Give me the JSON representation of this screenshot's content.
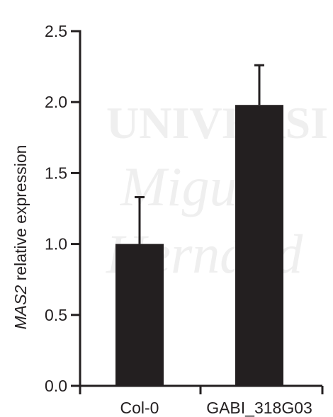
{
  "watermark": {
    "line1": "UNIVERSI",
    "line2": "Miguel",
    "line3": "Hernánd"
  },
  "chart_data": {
    "type": "bar",
    "categories": [
      "Col-0",
      "GABI_318G03"
    ],
    "values": [
      1.0,
      1.98
    ],
    "errors": [
      0.33,
      0.28
    ],
    "ylabel_italic": "MAS2",
    "ylabel_rest": " relative expression",
    "xlabel": "",
    "ylim": [
      0,
      2.5
    ],
    "yticks": [
      "0.0",
      "0.5",
      "1.0",
      "1.5",
      "2.0",
      "2.5"
    ],
    "ytick_values": [
      0,
      0.5,
      1.0,
      1.5,
      2.0,
      2.5
    ],
    "bar_color": "#231f20",
    "axis_color": "#231f20",
    "grid": false,
    "legend": "none"
  }
}
